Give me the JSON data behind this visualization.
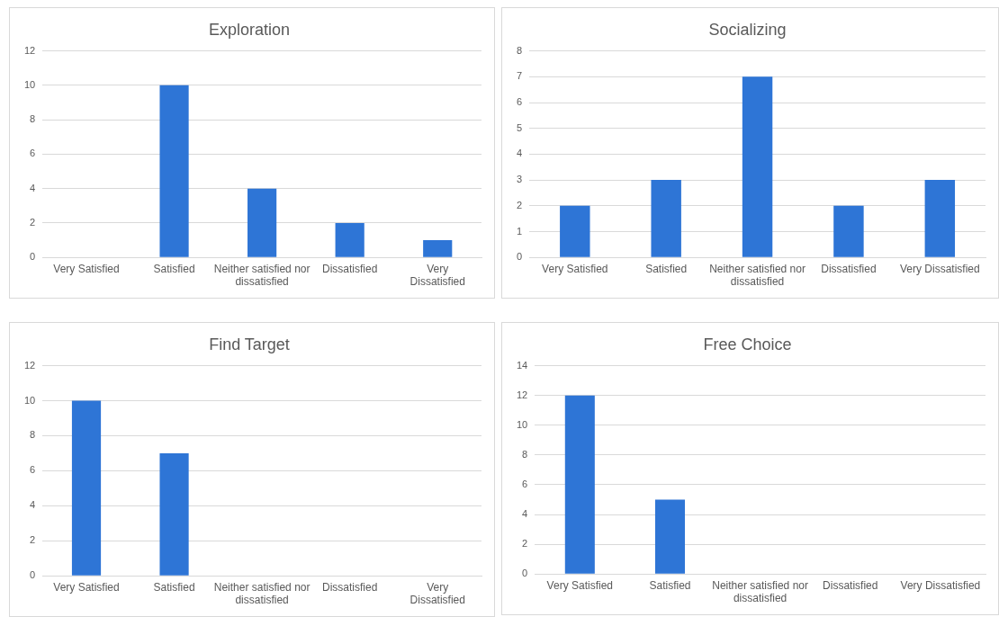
{
  "chart_data": [
    {
      "type": "bar",
      "title": "Exploration",
      "categories": [
        "Very Satisfied",
        "Satisfied",
        "Neither satisfied nor dissatisfied",
        "Dissatisfied",
        "Very Dissatisfied"
      ],
      "values": [
        0,
        10,
        4,
        2,
        1
      ],
      "color": "#2e75d6",
      "ylim": [
        0,
        12
      ],
      "yticks": [
        0,
        2,
        4,
        6,
        8,
        10,
        12
      ],
      "grid": "y"
    },
    {
      "type": "bar",
      "title": "Socializing",
      "categories": [
        "Very Satisfied",
        "Satisfied",
        "Neither satisfied nor dissatisfied",
        "Dissatisfied",
        "Very Dissatisfied"
      ],
      "values": [
        2,
        3,
        7,
        2,
        3
      ],
      "color": "#2e75d6",
      "ylim": [
        0,
        8
      ],
      "yticks": [
        0,
        1,
        2,
        3,
        4,
        5,
        6,
        7,
        8
      ],
      "grid": "y"
    },
    {
      "type": "bar",
      "title": "Find Target",
      "categories": [
        "Very Satisfied",
        "Satisfied",
        "Neither satisfied nor dissatisfied",
        "Dissatisfied",
        "Very Dissatisfied"
      ],
      "values": [
        10,
        7,
        0,
        0,
        0
      ],
      "color": "#2e75d6",
      "ylim": [
        0,
        12
      ],
      "yticks": [
        0,
        2,
        4,
        6,
        8,
        10,
        12
      ],
      "grid": "y"
    },
    {
      "type": "bar",
      "title": "Free Choice",
      "categories": [
        "Very Satisfied",
        "Satisfied",
        "Neither satisfied nor dissatisfied",
        "Dissatisfied",
        "Very Dissatisfied"
      ],
      "values": [
        12,
        5,
        0,
        0,
        0
      ],
      "color": "#2e75d6",
      "ylim": [
        0,
        14
      ],
      "yticks": [
        0,
        2,
        4,
        6,
        8,
        10,
        12,
        14
      ],
      "grid": "y"
    }
  ]
}
